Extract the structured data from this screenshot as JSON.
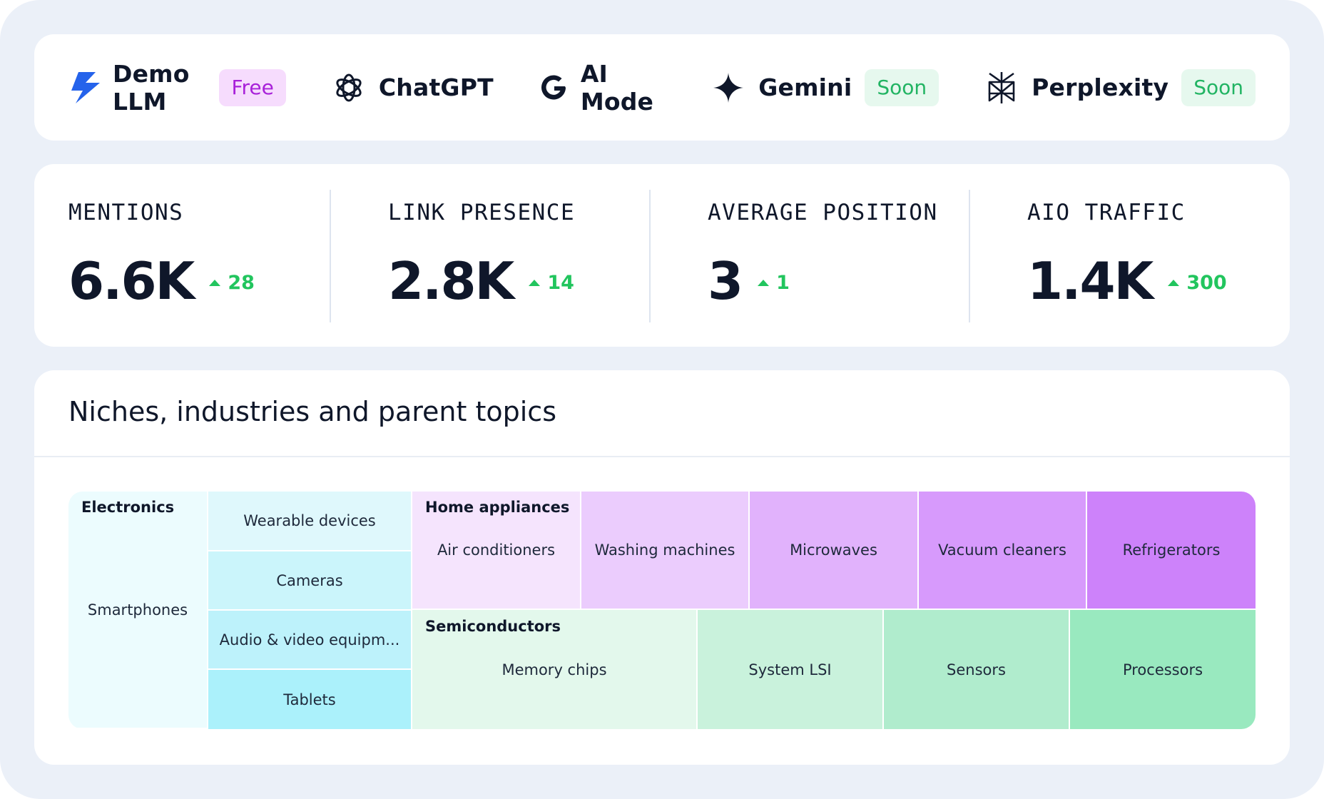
{
  "models": [
    {
      "name": "Demo LLM",
      "icon": "lightning-bolt-icon",
      "badge": "Free"
    },
    {
      "name": "ChatGPT",
      "icon": "openai-knot-icon",
      "badge": ""
    },
    {
      "name": "AI Mode",
      "icon": "google-g-icon",
      "badge": ""
    },
    {
      "name": "Gemini",
      "icon": "gemini-sparkle-icon",
      "badge": "Soon"
    },
    {
      "name": "Perplexity",
      "icon": "perplexity-icon",
      "badge": "Soon"
    }
  ],
  "metrics": [
    {
      "label": "MENTIONS",
      "value": "6.6K",
      "delta": "28"
    },
    {
      "label": "LINK PRESENCE",
      "value": "2.8K",
      "delta": "14"
    },
    {
      "label": "AVERAGE POSITION",
      "value": "3",
      "delta": "1"
    },
    {
      "label": "AIO TRAFFIC",
      "value": "1.4K",
      "delta": "300"
    }
  ],
  "topics": {
    "title": "Niches, industries and parent topics",
    "groups": [
      {
        "name": "Electronics",
        "items": [
          "Smartphones",
          "Wearable devices",
          "Cameras",
          "Audio & video equipm...",
          "Tablets"
        ]
      },
      {
        "name": "Home appliances",
        "items": [
          "Air conditioners",
          "Washing machines",
          "Microwaves",
          "Vacuum cleaners",
          "Refrigerators"
        ]
      },
      {
        "name": "Semiconductors",
        "items": [
          "Memory chips",
          "System LSI",
          "Sensors",
          "Processors"
        ]
      }
    ]
  },
  "colors": {
    "background": "#ebf0f8",
    "delta_up": "#22c55e",
    "badge_free_bg": "#f6dcfd",
    "badge_free_text": "#a821d9",
    "badge_soon_bg": "#e6f8ee",
    "badge_soon_text": "#22b463",
    "electronics_scale": [
      "#ecfcfe",
      "#dff8fc",
      "#cbf5fb",
      "#bdf2fb",
      "#abf1fb"
    ],
    "home_appliances_scale": [
      "#f5e4fd",
      "#ebccfd",
      "#e1b2fc",
      "#d79afc",
      "#cd82fa"
    ],
    "semiconductors_scale": [
      "#e3f8ec",
      "#c9f2dc",
      "#b0eccd",
      "#99e9bf"
    ]
  }
}
